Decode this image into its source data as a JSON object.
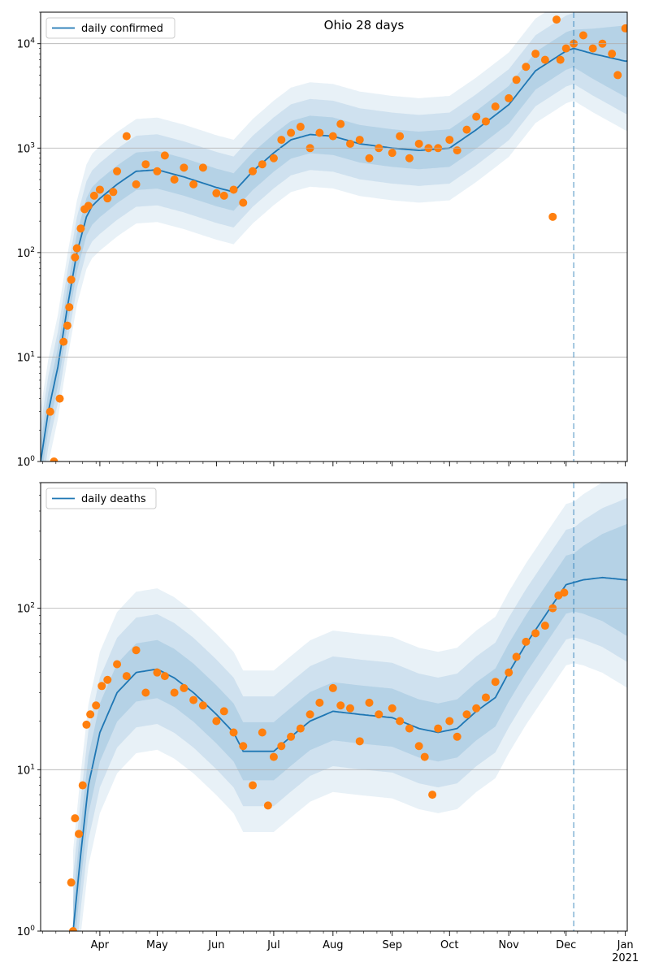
{
  "chart_data": [
    {
      "type": "line",
      "title": "Ohio 28 days",
      "legend": {
        "label": "daily confirmed",
        "placement": "top-left"
      },
      "yscale": "log",
      "ylim": [
        1,
        20000
      ],
      "yticks": [
        {
          "value": 1,
          "label": "10^0"
        },
        {
          "value": 10,
          "label": "10^1"
        },
        {
          "value": 100,
          "label": "10^2"
        },
        {
          "value": 1000,
          "label": "10^3"
        },
        {
          "value": 10000,
          "label": "10^4"
        }
      ],
      "grid": "horizontal-major",
      "xlim": [
        "2020-03-01",
        "2021-01-02"
      ],
      "forecast_start": "2020-12-05",
      "colors": {
        "line": "#1f77b4",
        "points": "#ff7f0e",
        "band": "#1f77b4"
      },
      "series": [
        {
          "name": "daily confirmed",
          "kind": "model-median",
          "x": [
            "2020-03-01",
            "2020-03-05",
            "2020-03-10",
            "2020-03-15",
            "2020-03-20",
            "2020-03-25",
            "2020-03-28",
            "2020-04-01",
            "2020-04-10",
            "2020-04-20",
            "2020-05-01",
            "2020-05-15",
            "2020-06-01",
            "2020-06-10",
            "2020-06-20",
            "2020-07-01",
            "2020-07-10",
            "2020-07-20",
            "2020-08-01",
            "2020-08-15",
            "2020-09-01",
            "2020-09-15",
            "2020-10-01",
            "2020-10-15",
            "2020-11-01",
            "2020-11-15",
            "2020-12-01",
            "2020-12-05",
            "2020-12-15",
            "2021-01-01"
          ],
          "y": [
            1,
            3,
            8,
            30,
            100,
            220,
            280,
            330,
            450,
            600,
            620,
            530,
            420,
            380,
            600,
            900,
            1200,
            1350,
            1300,
            1100,
            1000,
            950,
            1000,
            1500,
            2600,
            5500,
            8500,
            9000,
            8000,
            6800
          ]
        },
        {
          "name": "",
          "kind": "observed",
          "x": [
            "2020-03-06",
            "2020-03-08",
            "2020-03-11",
            "2020-03-13",
            "2020-03-15",
            "2020-03-16",
            "2020-03-17",
            "2020-03-19",
            "2020-03-20",
            "2020-03-22",
            "2020-03-24",
            "2020-03-26",
            "2020-03-29",
            "2020-04-01",
            "2020-04-05",
            "2020-04-08",
            "2020-04-10",
            "2020-04-15",
            "2020-04-20",
            "2020-04-25",
            "2020-05-01",
            "2020-05-05",
            "2020-05-10",
            "2020-05-15",
            "2020-05-20",
            "2020-05-25",
            "2020-06-01",
            "2020-06-05",
            "2020-06-10",
            "2020-06-15",
            "2020-06-20",
            "2020-06-25",
            "2020-07-01",
            "2020-07-05",
            "2020-07-10",
            "2020-07-15",
            "2020-07-20",
            "2020-07-25",
            "2020-08-01",
            "2020-08-05",
            "2020-08-10",
            "2020-08-15",
            "2020-08-20",
            "2020-08-25",
            "2020-09-01",
            "2020-09-05",
            "2020-09-10",
            "2020-09-15",
            "2020-09-20",
            "2020-09-25",
            "2020-10-01",
            "2020-10-05",
            "2020-10-10",
            "2020-10-15",
            "2020-10-20",
            "2020-10-25",
            "2020-11-01",
            "2020-11-05",
            "2020-11-10",
            "2020-11-15",
            "2020-11-20",
            "2020-11-24",
            "2020-11-26",
            "2020-11-28",
            "2020-12-01",
            "2020-12-05",
            "2020-12-10",
            "2020-12-15",
            "2020-12-20",
            "2020-12-25",
            "2020-12-28",
            "2021-01-01"
          ],
          "y": [
            3,
            1,
            4,
            14,
            20,
            30,
            55,
            90,
            110,
            170,
            260,
            280,
            350,
            400,
            330,
            380,
            600,
            1300,
            450,
            700,
            600,
            850,
            500,
            650,
            450,
            650,
            370,
            350,
            400,
            300,
            600,
            700,
            800,
            1200,
            1400,
            1600,
            1000,
            1400,
            1300,
            1700,
            1100,
            1200,
            800,
            1000,
            900,
            1300,
            800,
            1100,
            1000,
            1000,
            1200,
            950,
            1500,
            2000,
            1800,
            2500,
            3000,
            4500,
            6000,
            8000,
            7000,
            220,
            17000,
            7000,
            9000,
            10000,
            12000,
            9000,
            10000,
            8000,
            5000,
            14000
          ]
        }
      ],
      "x_tick_labels": [
        "Apr",
        "May",
        "Jun",
        "Jul",
        "Aug",
        "Sep",
        "Oct",
        "Nov",
        "Dec",
        "Jan",
        "2021"
      ]
    },
    {
      "type": "line",
      "title": "",
      "legend": {
        "label": "daily deaths",
        "placement": "top-left"
      },
      "yscale": "log",
      "ylim": [
        1,
        600
      ],
      "yticks": [
        {
          "value": 1,
          "label": "10^0"
        },
        {
          "value": 10,
          "label": "10^1"
        },
        {
          "value": 100,
          "label": "10^2"
        }
      ],
      "grid": "horizontal-major",
      "xlim": [
        "2020-03-01",
        "2021-01-02"
      ],
      "forecast_start": "2020-12-05",
      "colors": {
        "line": "#1f77b4",
        "points": "#ff7f0e",
        "band": "#1f77b4"
      },
      "series": [
        {
          "name": "daily deaths",
          "kind": "model-median",
          "x": [
            "2020-03-18",
            "2020-03-22",
            "2020-03-26",
            "2020-04-01",
            "2020-04-10",
            "2020-04-20",
            "2020-05-01",
            "2020-05-10",
            "2020-05-20",
            "2020-06-01",
            "2020-06-10",
            "2020-06-15",
            "2020-06-20",
            "2020-07-01",
            "2020-07-10",
            "2020-07-20",
            "2020-08-01",
            "2020-08-15",
            "2020-09-01",
            "2020-09-15",
            "2020-09-25",
            "2020-10-05",
            "2020-10-15",
            "2020-10-25",
            "2020-11-01",
            "2020-11-10",
            "2020-11-20",
            "2020-12-01",
            "2020-12-10",
            "2020-12-20",
            "2021-01-01"
          ],
          "y": [
            1,
            3,
            8,
            17,
            30,
            40,
            42,
            37,
            30,
            22,
            17,
            13,
            13,
            13,
            16,
            20,
            23,
            22,
            21,
            18,
            17,
            18,
            23,
            28,
            40,
            60,
            90,
            140,
            150,
            155,
            150
          ]
        },
        {
          "name": "",
          "kind": "observed",
          "x": [
            "2020-03-17",
            "2020-03-18",
            "2020-03-19",
            "2020-03-21",
            "2020-03-23",
            "2020-03-25",
            "2020-03-27",
            "2020-03-30",
            "2020-04-02",
            "2020-04-05",
            "2020-04-10",
            "2020-04-15",
            "2020-04-20",
            "2020-04-25",
            "2020-05-01",
            "2020-05-05",
            "2020-05-10",
            "2020-05-15",
            "2020-05-20",
            "2020-05-25",
            "2020-06-01",
            "2020-06-05",
            "2020-06-10",
            "2020-06-15",
            "2020-06-20",
            "2020-06-25",
            "2020-06-28",
            "2020-07-01",
            "2020-07-05",
            "2020-07-10",
            "2020-07-15",
            "2020-07-20",
            "2020-07-25",
            "2020-08-01",
            "2020-08-05",
            "2020-08-10",
            "2020-08-15",
            "2020-08-20",
            "2020-08-25",
            "2020-09-01",
            "2020-09-05",
            "2020-09-10",
            "2020-09-15",
            "2020-09-18",
            "2020-09-22",
            "2020-09-25",
            "2020-10-01",
            "2020-10-05",
            "2020-10-10",
            "2020-10-15",
            "2020-10-20",
            "2020-10-25",
            "2020-11-01",
            "2020-11-05",
            "2020-11-10",
            "2020-11-15",
            "2020-11-20",
            "2020-11-24",
            "2020-11-27",
            "2020-11-30"
          ],
          "y": [
            2,
            1,
            5,
            4,
            8,
            19,
            22,
            25,
            33,
            36,
            45,
            38,
            55,
            30,
            40,
            38,
            30,
            32,
            27,
            25,
            20,
            23,
            17,
            14,
            8,
            17,
            6,
            12,
            14,
            16,
            18,
            22,
            26,
            32,
            25,
            24,
            15,
            26,
            22,
            24,
            20,
            18,
            14,
            12,
            7,
            18,
            20,
            16,
            22,
            24,
            28,
            35,
            40,
            50,
            62,
            70,
            78,
            100,
            120,
            125
          ]
        }
      ],
      "x_tick_labels": [
        "Apr",
        "May",
        "Jun",
        "Jul",
        "Aug",
        "Sep",
        "Oct",
        "Nov",
        "Dec",
        "Jan",
        "2021"
      ]
    }
  ]
}
